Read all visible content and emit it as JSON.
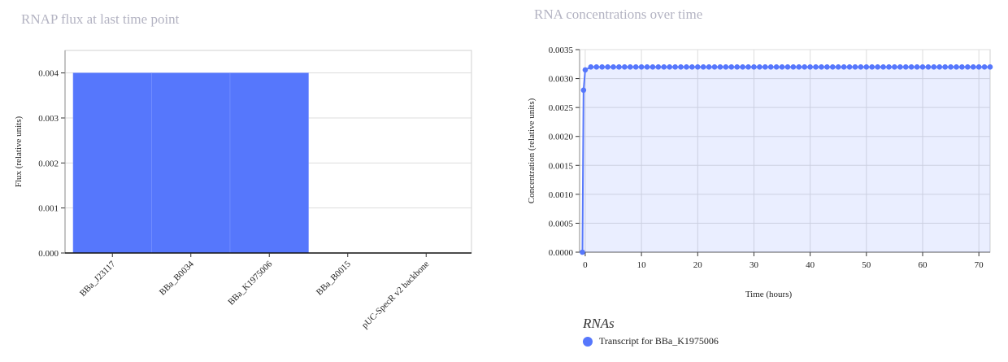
{
  "chart_data": [
    {
      "type": "bar",
      "title": "RNAP flux at last time point",
      "xlabel": "",
      "ylabel": "Flux (relative units)",
      "categories": [
        "BBa_J23117",
        "BBa_B0034",
        "BBa_K1975006",
        "BBa_B0015",
        "pUC-SpecR v2 backbone"
      ],
      "values": [
        0.004,
        0.004,
        0.004,
        0,
        0
      ],
      "ylim": [
        0,
        0.0045
      ],
      "yticks": [
        0.0,
        0.001,
        0.002,
        0.003,
        0.004
      ],
      "ytick_labels": [
        "0.000",
        "0.001",
        "0.002",
        "0.003",
        "0.004"
      ],
      "color": "#5677fc",
      "grid": true
    },
    {
      "type": "line",
      "title": "RNA concentrations over time",
      "xlabel": "Time (hours)",
      "ylabel": "Concentration (relative units)",
      "xlim": [
        -1,
        72
      ],
      "ylim": [
        0,
        0.0035
      ],
      "xticks": [
        0,
        10,
        20,
        30,
        40,
        50,
        60,
        70
      ],
      "yticks": [
        0.0,
        0.0005,
        0.001,
        0.0015,
        0.002,
        0.0025,
        0.003,
        0.0035
      ],
      "ytick_labels": [
        "0.0000",
        "0.0005",
        "0.0010",
        "0.0015",
        "0.0020",
        "0.0025",
        "0.0030",
        "0.0035"
      ],
      "legend_title": "RNAs",
      "legend_position": "bottom",
      "grid": true,
      "series": [
        {
          "name": "Transcript for BBa_K1975006",
          "color": "#5677fc",
          "x": [
            -0.5,
            -0.3,
            0,
            1,
            2,
            3,
            4,
            5,
            6,
            7,
            8,
            9,
            10,
            11,
            12,
            13,
            14,
            15,
            16,
            17,
            18,
            19,
            20,
            21,
            22,
            23,
            24,
            25,
            26,
            27,
            28,
            29,
            30,
            31,
            32,
            33,
            34,
            35,
            36,
            37,
            38,
            39,
            40,
            41,
            42,
            43,
            44,
            45,
            46,
            47,
            48,
            49,
            50,
            51,
            52,
            53,
            54,
            55,
            56,
            57,
            58,
            59,
            60,
            61,
            62,
            63,
            64,
            65,
            66,
            67,
            68,
            69,
            70,
            71,
            72
          ],
          "y": [
            0.0,
            0.0028,
            0.00315,
            0.0032,
            0.0032,
            0.0032,
            0.0032,
            0.0032,
            0.0032,
            0.0032,
            0.0032,
            0.0032,
            0.0032,
            0.0032,
            0.0032,
            0.0032,
            0.0032,
            0.0032,
            0.0032,
            0.0032,
            0.0032,
            0.0032,
            0.0032,
            0.0032,
            0.0032,
            0.0032,
            0.0032,
            0.0032,
            0.0032,
            0.0032,
            0.0032,
            0.0032,
            0.0032,
            0.0032,
            0.0032,
            0.0032,
            0.0032,
            0.0032,
            0.0032,
            0.0032,
            0.0032,
            0.0032,
            0.0032,
            0.0032,
            0.0032,
            0.0032,
            0.0032,
            0.0032,
            0.0032,
            0.0032,
            0.0032,
            0.0032,
            0.0032,
            0.0032,
            0.0032,
            0.0032,
            0.0032,
            0.0032,
            0.0032,
            0.0032,
            0.0032,
            0.0032,
            0.0032,
            0.0032,
            0.0032,
            0.0032,
            0.0032,
            0.0032,
            0.0032,
            0.0032,
            0.0032,
            0.0032,
            0.0032,
            0.0032,
            0.0032
          ]
        }
      ]
    }
  ]
}
